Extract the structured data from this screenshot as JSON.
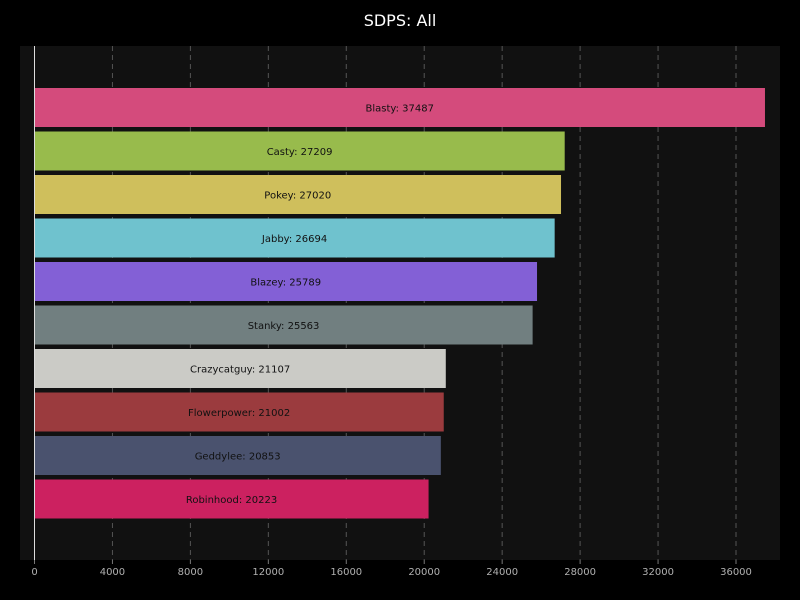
{
  "chart_data": {
    "type": "bar",
    "orientation": "horizontal",
    "title": "SDPS: All",
    "xlabel": "",
    "ylabel": "",
    "xlim": [
      0,
      38000
    ],
    "grid": true,
    "background": "#111111",
    "page_background": "#000000",
    "ticks": [
      0,
      4000,
      8000,
      12000,
      16000,
      20000,
      24000,
      28000,
      32000,
      36000
    ],
    "bars": [
      {
        "name": "Blasty",
        "value": 37487,
        "label": "Blasty: 37487",
        "color": "#d44b7c"
      },
      {
        "name": "Casty",
        "value": 27209,
        "label": "Casty: 27209",
        "color": "#98bb4c"
      },
      {
        "name": "Pokey",
        "value": 27020,
        "label": "Pokey: 27020",
        "color": "#cfbf5c"
      },
      {
        "name": "Jabby",
        "value": 26694,
        "label": "Jabby: 26694",
        "color": "#6fc2ce"
      },
      {
        "name": "Blazey",
        "value": 25789,
        "label": "Blazey: 25789",
        "color": "#8360d6"
      },
      {
        "name": "Stanky",
        "value": 25563,
        "label": "Stanky: 25563",
        "color": "#717f80"
      },
      {
        "name": "Crazycatguy",
        "value": 21107,
        "label": "Crazycatguy: 21107",
        "color": "#cbcbc6"
      },
      {
        "name": "Flowerpower",
        "value": 21002,
        "label": "Flowerpower: 21002",
        "color": "#9b3b3e"
      },
      {
        "name": "Geddylee",
        "value": 20853,
        "label": "Geddylee: 20853",
        "color": "#4a526e"
      },
      {
        "name": "Robinhood",
        "value": 20223,
        "label": "Robinhood: 20223",
        "color": "#cc2160"
      }
    ]
  }
}
